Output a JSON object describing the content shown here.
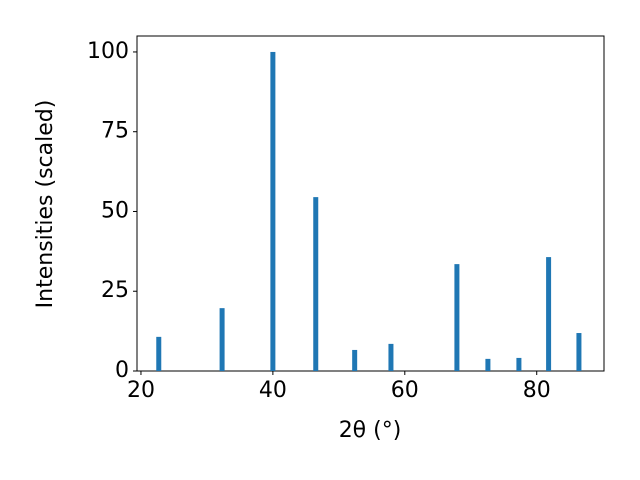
{
  "chart_data": {
    "type": "bar",
    "x": [
      22.7,
      32.3,
      40.0,
      46.5,
      52.4,
      57.9,
      67.9,
      72.6,
      77.3,
      81.8,
      86.4
    ],
    "values": [
      10.7,
      19.7,
      100,
      54.5,
      6.6,
      8.5,
      33.5,
      3.8,
      4.1,
      35.7,
      11.9
    ],
    "color": "#1f77b4",
    "xlabel": "2θ (°)",
    "ylabel": "Intensities (scaled)",
    "xlim": [
      19.4,
      90.2
    ],
    "xticks": [
      20,
      40,
      60,
      80
    ],
    "ylim": [
      0,
      105
    ],
    "yticks": [
      0,
      25,
      50,
      75,
      100
    ]
  }
}
